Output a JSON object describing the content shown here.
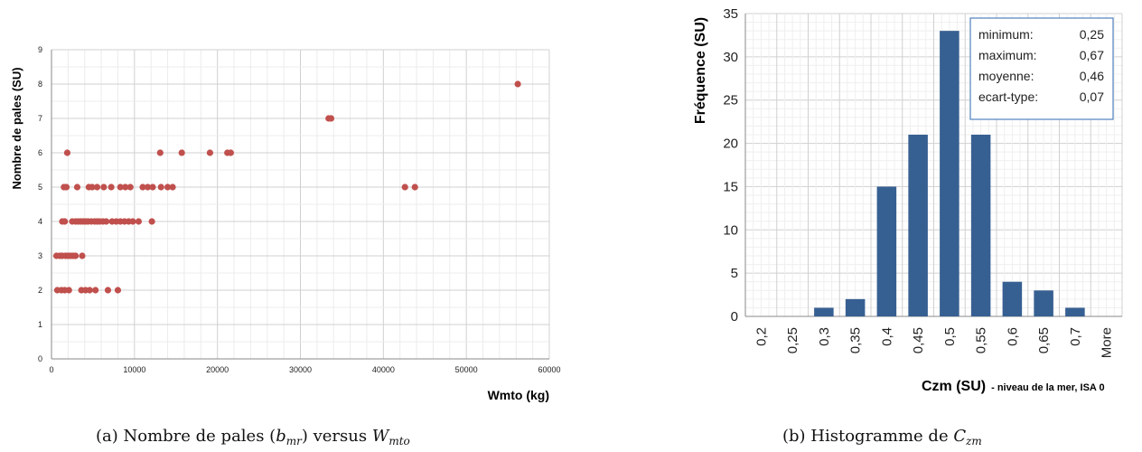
{
  "captions": {
    "a": {
      "prefix": "(a) Nombre de pales (",
      "var": "b",
      "var_sub": "mr",
      "middle": ") versus ",
      "var2": "W",
      "var2_sub": "mto"
    },
    "b": {
      "prefix": "(b) Histogramme de ",
      "var": "C",
      "var_sub": "zm"
    }
  },
  "chart_data": [
    {
      "type": "scatter",
      "xlabel": "Wmto (kg)",
      "ylabel": "Nombre de pales (SU)",
      "xlim": [
        0,
        60000
      ],
      "ylim": [
        0,
        9
      ],
      "xticks": [
        "0",
        "10000",
        "20000",
        "30000",
        "40000",
        "50000",
        "60000"
      ],
      "yticks": [
        "0",
        "1",
        "2",
        "3",
        "4",
        "5",
        "6",
        "7",
        "8",
        "9"
      ],
      "grid": true,
      "marker_color": "#c0504d",
      "points": [
        [
          700,
          2
        ],
        [
          1200,
          2
        ],
        [
          1600,
          2
        ],
        [
          2100,
          2
        ],
        [
          3600,
          2
        ],
        [
          4100,
          2
        ],
        [
          4600,
          2
        ],
        [
          5300,
          2
        ],
        [
          6800,
          2
        ],
        [
          8000,
          2
        ],
        [
          600,
          3
        ],
        [
          1000,
          3
        ],
        [
          1300,
          3
        ],
        [
          1700,
          3
        ],
        [
          2000,
          3
        ],
        [
          2300,
          3
        ],
        [
          2600,
          3
        ],
        [
          2900,
          3
        ],
        [
          3700,
          3
        ],
        [
          1300,
          4
        ],
        [
          1600,
          4
        ],
        [
          2500,
          4
        ],
        [
          2900,
          4
        ],
        [
          3200,
          4
        ],
        [
          3500,
          4
        ],
        [
          3800,
          4
        ],
        [
          4100,
          4
        ],
        [
          4400,
          4
        ],
        [
          4800,
          4
        ],
        [
          5200,
          4
        ],
        [
          5500,
          4
        ],
        [
          5800,
          4
        ],
        [
          6200,
          4
        ],
        [
          6600,
          4
        ],
        [
          7300,
          4
        ],
        [
          7800,
          4
        ],
        [
          8300,
          4
        ],
        [
          8800,
          4
        ],
        [
          9300,
          4
        ],
        [
          9800,
          4
        ],
        [
          10500,
          4
        ],
        [
          12100,
          4
        ],
        [
          1500,
          5
        ],
        [
          1800,
          5
        ],
        [
          3100,
          5
        ],
        [
          4500,
          5
        ],
        [
          4900,
          5
        ],
        [
          5500,
          5
        ],
        [
          6300,
          5
        ],
        [
          7200,
          5
        ],
        [
          8300,
          5
        ],
        [
          8900,
          5
        ],
        [
          9500,
          5
        ],
        [
          11000,
          5
        ],
        [
          11600,
          5
        ],
        [
          12200,
          5
        ],
        [
          13200,
          5
        ],
        [
          14000,
          5
        ],
        [
          14600,
          5
        ],
        [
          42600,
          5
        ],
        [
          43800,
          5
        ],
        [
          1900,
          6
        ],
        [
          13100,
          6
        ],
        [
          15700,
          6
        ],
        [
          19100,
          6
        ],
        [
          21200,
          6
        ],
        [
          21600,
          6
        ],
        [
          33400,
          7
        ],
        [
          33700,
          7
        ],
        [
          56200,
          8
        ]
      ]
    },
    {
      "type": "bar",
      "xlabel": "Czm (SU)",
      "xlabel_note": "- niveau de la mer, ISA 0",
      "ylabel": "Fréquence (SU)",
      "categories": [
        "0,2",
        "0,25",
        "0,3",
        "0,35",
        "0,4",
        "0,45",
        "0,5",
        "0,55",
        "0,6",
        "0,65",
        "0,7",
        "More"
      ],
      "values": [
        0,
        0,
        1,
        2,
        15,
        21,
        33,
        21,
        4,
        3,
        1,
        0
      ],
      "ylim": [
        0,
        35
      ],
      "yticks": [
        "0",
        "5",
        "10",
        "15",
        "20",
        "25",
        "30",
        "35"
      ],
      "grid": true,
      "bar_color": "#376092",
      "stats": [
        {
          "label": "minimum:",
          "value": "0,25"
        },
        {
          "label": "maximum:",
          "value": "0,67"
        },
        {
          "label": "moyenne:",
          "value": "0,46"
        },
        {
          "label": "ecart-type:",
          "value": "0,07"
        }
      ],
      "stats_border_color": "#4f81bd"
    }
  ]
}
